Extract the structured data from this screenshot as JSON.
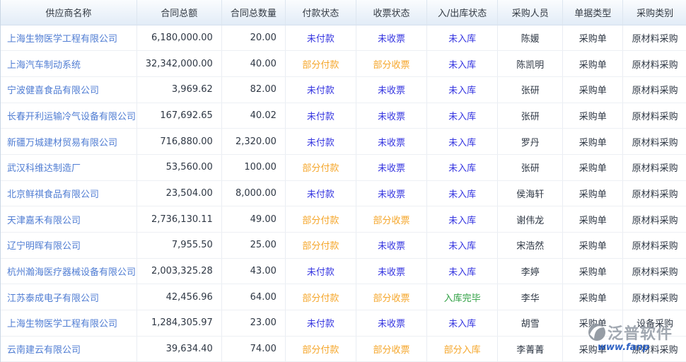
{
  "table": {
    "columns": [
      {
        "key": "supplier",
        "label": "供应商名称"
      },
      {
        "key": "total_amount",
        "label": "合同总额"
      },
      {
        "key": "total_qty",
        "label": "合同总数量"
      },
      {
        "key": "pay_status",
        "label": "付款状态"
      },
      {
        "key": "invoice_status",
        "label": "收票状态"
      },
      {
        "key": "stock_status",
        "label": "入/出库状态"
      },
      {
        "key": "buyer",
        "label": "采购人员"
      },
      {
        "key": "doc_type",
        "label": "单据类型"
      },
      {
        "key": "purchase_category",
        "label": "采购类别"
      }
    ],
    "rows": [
      {
        "supplier": "上海生物医学工程有限公司",
        "total_amount": "6,180,000.00",
        "total_qty": "20.00",
        "pay_status": "未付款",
        "invoice_status": "未收票",
        "stock_status": "未入库",
        "buyer": "陈媛",
        "doc_type": "采购单",
        "purchase_category": "原材料采购"
      },
      {
        "supplier": "上海汽车制动系统",
        "total_amount": "32,342,000.00",
        "total_qty": "40.00",
        "pay_status": "部分付款",
        "invoice_status": "部分收票",
        "stock_status": "未入库",
        "buyer": "陈凯明",
        "doc_type": "采购单",
        "purchase_category": "原材料采购"
      },
      {
        "supplier": "宁波健喜食品有限公司",
        "total_amount": "3,969.62",
        "total_qty": "82.00",
        "pay_status": "未付款",
        "invoice_status": "未收票",
        "stock_status": "未入库",
        "buyer": "张研",
        "doc_type": "采购单",
        "purchase_category": "原材料采购"
      },
      {
        "supplier": "长春开利运输冷气设备有限公司",
        "total_amount": "167,692.65",
        "total_qty": "40.02",
        "pay_status": "未付款",
        "invoice_status": "未收票",
        "stock_status": "未入库",
        "buyer": "张研",
        "doc_type": "采购单",
        "purchase_category": "原材料采购"
      },
      {
        "supplier": "新疆万城建材贸易有限公司",
        "total_amount": "716,880.00",
        "total_qty": "2,320.00",
        "pay_status": "未付款",
        "invoice_status": "未收票",
        "stock_status": "未入库",
        "buyer": "罗丹",
        "doc_type": "采购单",
        "purchase_category": "原材料采购"
      },
      {
        "supplier": "武汉科维达制造厂",
        "total_amount": "53,560.00",
        "total_qty": "100.00",
        "pay_status": "部分付款",
        "invoice_status": "未收票",
        "stock_status": "未入库",
        "buyer": "张研",
        "doc_type": "采购单",
        "purchase_category": "原材料采购"
      },
      {
        "supplier": "北京鲜祺食品有限公司",
        "total_amount": "23,504.00",
        "total_qty": "8,000.00",
        "pay_status": "未付款",
        "invoice_status": "未收票",
        "stock_status": "未入库",
        "buyer": "侯海轩",
        "doc_type": "采购单",
        "purchase_category": "原材料采购"
      },
      {
        "supplier": "天津嘉禾有限公司",
        "total_amount": "2,736,130.11",
        "total_qty": "49.00",
        "pay_status": "部分付款",
        "invoice_status": "部分收票",
        "stock_status": "未入库",
        "buyer": "谢伟龙",
        "doc_type": "采购单",
        "purchase_category": "原材料采购"
      },
      {
        "supplier": "辽宁明晖有限公司",
        "total_amount": "7,955.50",
        "total_qty": "25.00",
        "pay_status": "部分付款",
        "invoice_status": "未收票",
        "stock_status": "未入库",
        "buyer": "宋浩然",
        "doc_type": "采购单",
        "purchase_category": "原材料采购"
      },
      {
        "supplier": "杭州瀚海医疗器械设备有限公司",
        "total_amount": "2,003,325.28",
        "total_qty": "43.00",
        "pay_status": "未付款",
        "invoice_status": "未收票",
        "stock_status": "未入库",
        "buyer": "李婷",
        "doc_type": "采购单",
        "purchase_category": "原材料采购"
      },
      {
        "supplier": "江苏泰成电子有限公司",
        "total_amount": "42,456.96",
        "total_qty": "64.00",
        "pay_status": "部分付款",
        "invoice_status": "部分收票",
        "stock_status": "入库完毕",
        "buyer": "李华",
        "doc_type": "采购单",
        "purchase_category": "原材料采购"
      },
      {
        "supplier": "上海生物医学工程有限公司",
        "total_amount": "1,284,305.97",
        "total_qty": "23.00",
        "pay_status": "未付款",
        "invoice_status": "未收票",
        "stock_status": "未入库",
        "buyer": "胡雪",
        "doc_type": "采购单",
        "purchase_category": "设备采购"
      },
      {
        "supplier": "云南建云有限公司",
        "total_amount": "39,634.40",
        "total_qty": "74.00",
        "pay_status": "部分付款",
        "invoice_status": "部分收票",
        "stock_status": "部分入库",
        "buyer": "李菁菁",
        "doc_type": "采购单",
        "purchase_category": "原材料采购"
      }
    ]
  },
  "status_colors": {
    "未付款": "#3535e0",
    "未收票": "#3535e0",
    "未入库": "#3535e0",
    "部分付款": "#f5a62a",
    "部分收票": "#f5a62a",
    "部分入库": "#f5a62a",
    "入库完毕": "#2fa043"
  },
  "colors": {
    "link_blue": "#507dd3",
    "header_bg_top": "#fafcfe",
    "header_bg_bottom": "#e2ecf7",
    "text_dark": "#2e3744"
  },
  "watermark": {
    "brand": "泛普软件",
    "url_visible": "www.fanp"
  }
}
